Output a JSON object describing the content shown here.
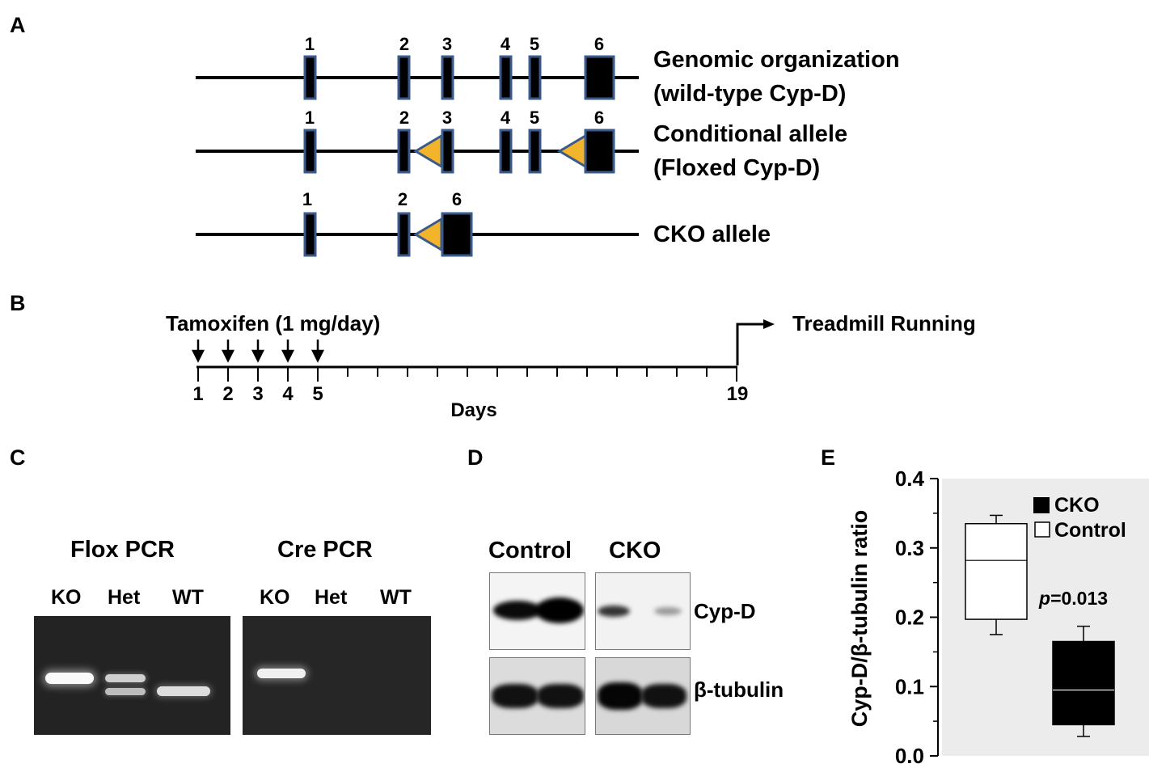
{
  "panels": {
    "a": "A",
    "b": "B",
    "c": "C",
    "d": "D",
    "e": "E"
  },
  "panel_a": {
    "alleles": [
      {
        "label_line1": "Genomic organization",
        "label_line2": "(wild-type Cyp-D)",
        "exons": [
          "1",
          "2",
          "3",
          "4",
          "5",
          "6"
        ]
      },
      {
        "label_line1": "Conditional allele",
        "label_line2": "(Floxed Cyp-D)",
        "exons": [
          "1",
          "2",
          "3",
          "4",
          "5",
          "6"
        ]
      },
      {
        "label_line1": "CKO allele",
        "label_line2": "",
        "exons": [
          "1",
          "2",
          "6"
        ]
      }
    ],
    "colors": {
      "exon_fill": "#000000",
      "exon_border": "#3a5a8c",
      "loxp": "#f2b42a"
    }
  },
  "panel_b": {
    "treatment": "Tamoxifen (1 mg/day)",
    "event": "Treadmill Running",
    "axis_label": "Days",
    "ticks": [
      "1",
      "2",
      "3",
      "4",
      "5",
      "19"
    ]
  },
  "panel_c": {
    "gels": [
      {
        "title": "Flox PCR",
        "lanes": [
          "KO",
          "Het",
          "WT"
        ]
      },
      {
        "title": "Cre PCR",
        "lanes": [
          "KO",
          "Het",
          "WT"
        ]
      }
    ]
  },
  "panel_d": {
    "groups": [
      "Control",
      "CKO"
    ],
    "bands": [
      "Cyp-D",
      "β-tubulin"
    ]
  },
  "chart_data": {
    "type": "box",
    "ylabel": "Cyp-D/β-tubulin ratio",
    "ylim": [
      0,
      0.4
    ],
    "yticks": [
      "0.0",
      "0.1",
      "0.2",
      "0.3",
      "0.4"
    ],
    "legend": [
      "CKO",
      "Control"
    ],
    "legend_position": "top-right",
    "annotation_prefix": "p",
    "annotation_value": "=0.013",
    "series": [
      {
        "name": "Control",
        "min": 0.175,
        "q1": 0.197,
        "median": 0.282,
        "q3": 0.335,
        "max": 0.347,
        "color": "#ffffff"
      },
      {
        "name": "CKO",
        "min": 0.028,
        "q1": 0.045,
        "median": 0.095,
        "q3": 0.165,
        "max": 0.187,
        "color": "#000000"
      }
    ],
    "plot_background": "#ececec"
  }
}
